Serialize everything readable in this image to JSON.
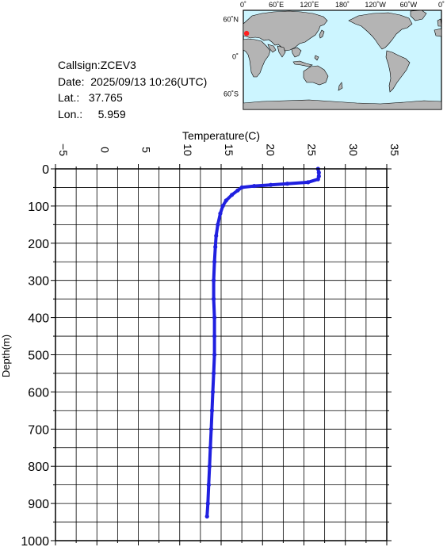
{
  "info": {
    "callsign": "Callsign:ZCEV3",
    "date": "Date:  2025/09/13 10:26(UTC)",
    "lat": "Lat.:   37.765",
    "lon": "Lon.:     5.959"
  },
  "map": {
    "lon_labels": [
      "0˚",
      "60˚E",
      "120˚E",
      "180˚",
      "120˚W",
      "60˚W",
      "0˚"
    ],
    "lat_labels": [
      "60˚N",
      "0˚",
      "60˚S"
    ],
    "ocean_color": "#ccf5ff",
    "land_color": "#b4b4b4",
    "marker": {
      "lat": 37.765,
      "lon": 5.959,
      "color": "#ff2020"
    }
  },
  "chart_data": {
    "type": "line",
    "title": "",
    "xlabel": "Temperature(C)",
    "ylabel": "Depth(m)",
    "xlim": [
      -5,
      35
    ],
    "ylim": [
      1000,
      0
    ],
    "x_ticks": [
      "−5",
      "0",
      "5",
      "10",
      "15",
      "20",
      "25",
      "30",
      "35"
    ],
    "y_ticks": [
      "0",
      "100",
      "200",
      "300",
      "400",
      "500",
      "600",
      "700",
      "800",
      "900",
      "1000"
    ],
    "grid": true,
    "line_color": "#2020e0",
    "series": [
      {
        "x": [
          26.7,
          26.8,
          26.8,
          26.7,
          25.5,
          23.0,
          21.0,
          19.0,
          17.5,
          17.0,
          16.3,
          15.6,
          15.2,
          14.9,
          14.6,
          14.4,
          14.3,
          14.2,
          14.1,
          14.1,
          14.2,
          14.2,
          14.2,
          14.1,
          14.0,
          13.9,
          13.8,
          13.7,
          13.6,
          13.5,
          13.4,
          13.3
        ],
        "y": [
          0,
          10,
          20,
          28,
          36,
          40,
          43,
          46,
          50,
          58,
          70,
          85,
          100,
          120,
          150,
          180,
          210,
          250,
          300,
          350,
          400,
          450,
          500,
          550,
          600,
          650,
          700,
          750,
          800,
          850,
          900,
          935
        ]
      }
    ]
  }
}
